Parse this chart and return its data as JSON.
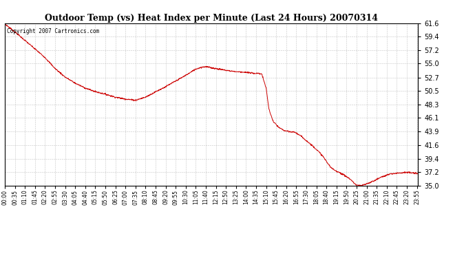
{
  "title": "Outdoor Temp (vs) Heat Index per Minute (Last 24 Hours) 20070314",
  "copyright_text": "Copyright 2007 Cartronics.com",
  "line_color": "#cc0000",
  "background_color": "#ffffff",
  "grid_color": "#aaaaaa",
  "ylim": [
    35.0,
    61.6
  ],
  "yticks": [
    35.0,
    37.2,
    39.4,
    41.6,
    43.9,
    46.1,
    48.3,
    50.5,
    52.7,
    55.0,
    57.2,
    59.4,
    61.6
  ],
  "xtick_labels": [
    "00:00",
    "00:35",
    "01:10",
    "01:45",
    "02:20",
    "02:55",
    "03:30",
    "04:05",
    "04:40",
    "05:15",
    "05:50",
    "06:25",
    "07:00",
    "07:35",
    "08:10",
    "08:45",
    "09:20",
    "09:55",
    "10:30",
    "11:05",
    "11:40",
    "12:15",
    "12:50",
    "13:25",
    "14:00",
    "14:35",
    "15:10",
    "15:45",
    "16:20",
    "16:55",
    "17:30",
    "18:05",
    "18:40",
    "19:15",
    "19:50",
    "20:25",
    "21:00",
    "21:35",
    "22:10",
    "22:45",
    "23:20",
    "23:55"
  ],
  "key_points_x": [
    0,
    35,
    70,
    105,
    140,
    175,
    210,
    245,
    280,
    315,
    350,
    385,
    420,
    455,
    490,
    510,
    530,
    560,
    590,
    620,
    645,
    665,
    685,
    700,
    720,
    745,
    770,
    800,
    830,
    850,
    870,
    880,
    895,
    910,
    920,
    935,
    955,
    975,
    995,
    1010,
    1035,
    1060,
    1080,
    1105,
    1120,
    1135,
    1150,
    1165,
    1190,
    1205,
    1215,
    1225,
    1240,
    1260,
    1285,
    1310,
    1340,
    1370,
    1400,
    1435
  ],
  "key_points_y": [
    61.5,
    60.2,
    58.8,
    57.4,
    56.0,
    54.2,
    52.8,
    51.8,
    51.0,
    50.4,
    50.0,
    49.5,
    49.2,
    49.0,
    49.5,
    50.0,
    50.5,
    51.2,
    52.0,
    52.8,
    53.5,
    54.1,
    54.4,
    54.5,
    54.3,
    54.1,
    53.9,
    53.7,
    53.6,
    53.5,
    53.4,
    53.4,
    53.3,
    51.0,
    47.5,
    45.5,
    44.5,
    44.0,
    43.8,
    43.8,
    43.0,
    42.0,
    41.2,
    40.0,
    39.0,
    38.0,
    37.5,
    37.2,
    36.5,
    36.0,
    35.5,
    35.1,
    35.0,
    35.3,
    35.8,
    36.4,
    36.9,
    37.1,
    37.2,
    37.0
  ],
  "xtick_positions": [
    0,
    35,
    70,
    105,
    140,
    175,
    210,
    245,
    280,
    315,
    350,
    385,
    420,
    455,
    490,
    525,
    560,
    595,
    630,
    665,
    700,
    735,
    770,
    805,
    840,
    875,
    910,
    945,
    980,
    1015,
    1050,
    1085,
    1120,
    1155,
    1190,
    1225,
    1260,
    1295,
    1330,
    1365,
    1400,
    1435
  ]
}
